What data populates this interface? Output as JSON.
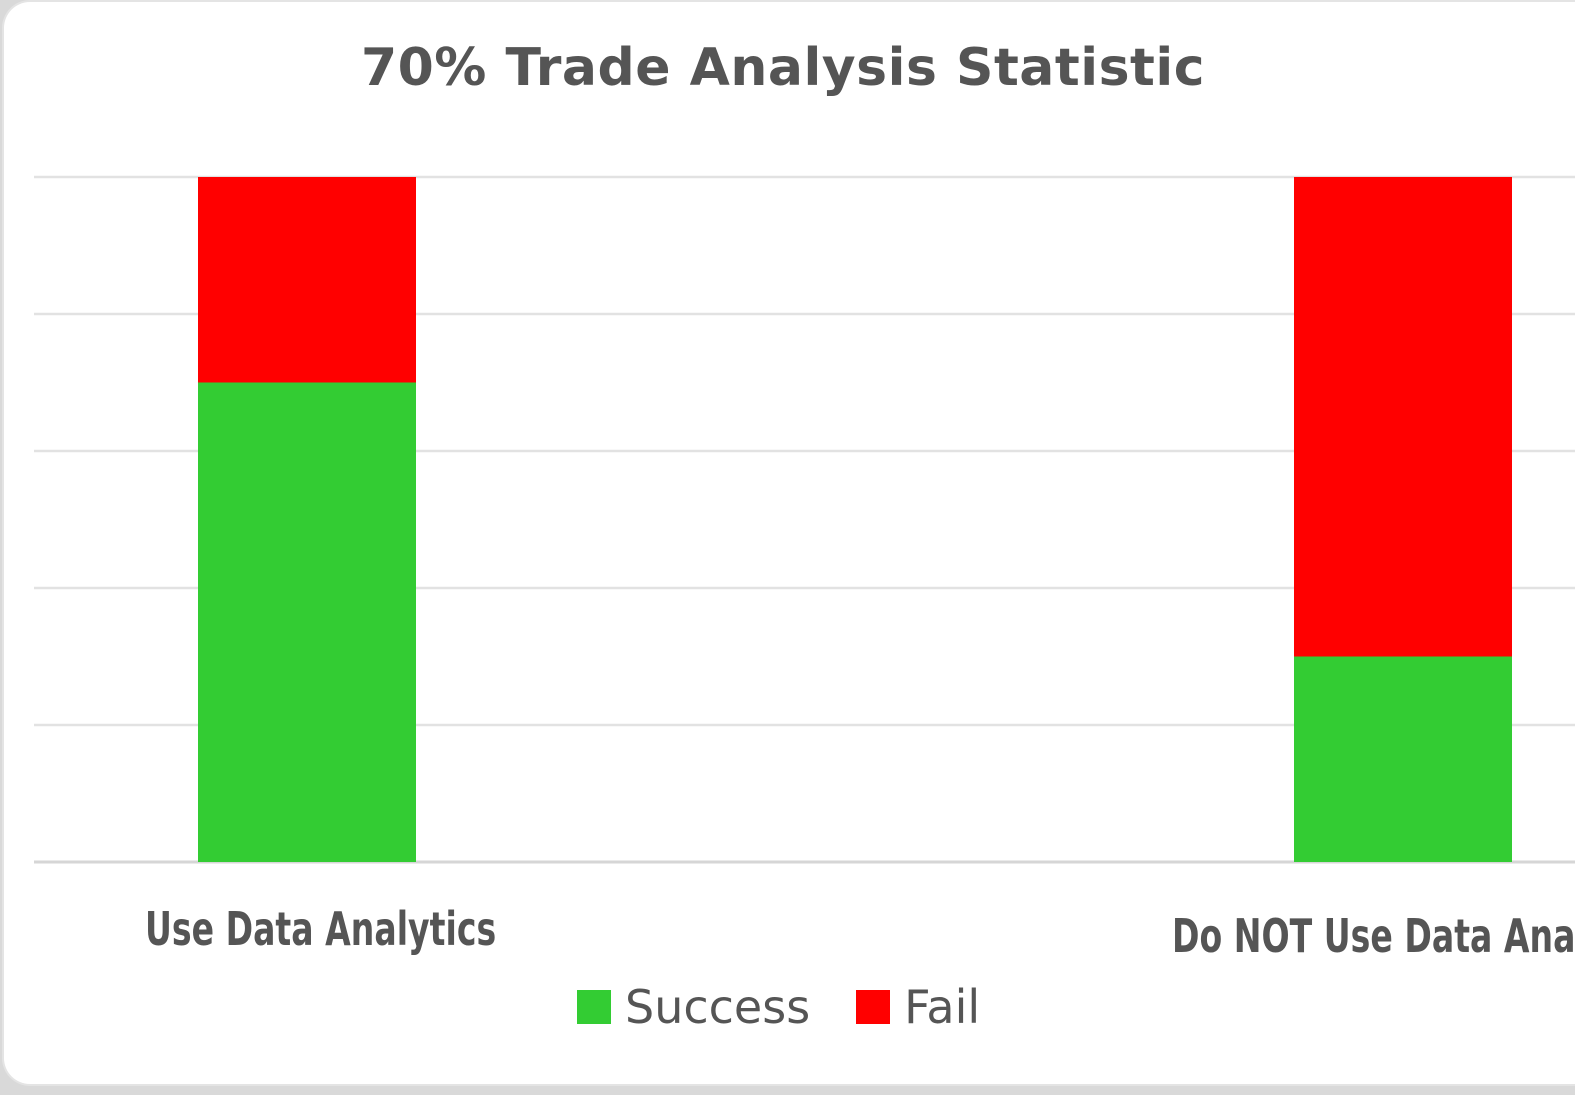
{
  "chart_data": {
    "type": "bar",
    "stacked": true,
    "title": "70% Trade Analysis Statistic",
    "categories": [
      "Use Data Analytics",
      "Do NOT Use Data Analytics"
    ],
    "series": [
      {
        "name": "Success",
        "values": [
          70,
          30
        ],
        "color": "#33cc33"
      },
      {
        "name": "Fail",
        "values": [
          30,
          70
        ],
        "color": "#ff0000"
      }
    ],
    "ylim": [
      0,
      100
    ],
    "grid": true,
    "legend_position": "bottom"
  }
}
